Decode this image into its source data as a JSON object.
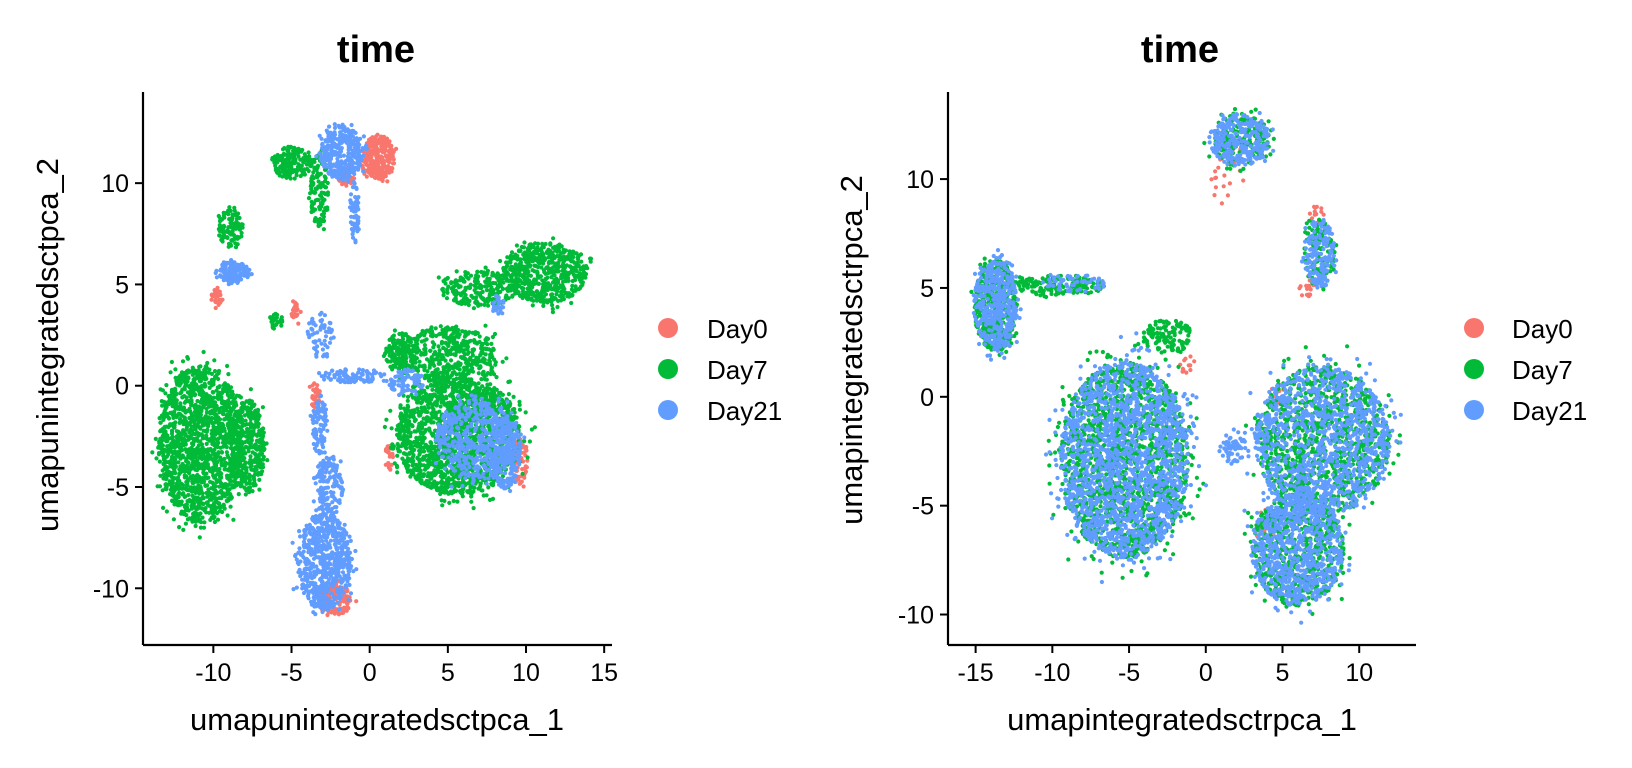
{
  "chart_data": [
    {
      "type": "scatter",
      "title": "time",
      "xlabel": "umapunintegratedsctpca_1",
      "ylabel": "umapunintegratedsctpca_2",
      "xlim": [
        -14.5,
        15.5
      ],
      "ylim": [
        -12.8,
        14.5
      ],
      "xticks": [
        -10,
        -5,
        0,
        5,
        10,
        15
      ],
      "yticks": [
        -10,
        -5,
        0,
        5,
        10
      ],
      "tick_labels_x": [
        "-10",
        "-5",
        "0",
        "5",
        "10",
        "15"
      ],
      "tick_labels_y": [
        "-10",
        "-5",
        "0",
        "5",
        "10"
      ],
      "legend_position": "right",
      "series": [
        {
          "name": "Day0",
          "color": "#F8766D",
          "clusters": [
            {
              "cx": 0.6,
              "cy": 11.3,
              "rx": 1.0,
              "ry": 1.1,
              "n": 260
            },
            {
              "cx": -9.8,
              "cy": 4.4,
              "rx": 0.35,
              "ry": 0.45,
              "n": 30
            },
            {
              "cx": -3.5,
              "cy": -0.6,
              "rx": 0.35,
              "ry": 0.7,
              "n": 40
            },
            {
              "cx": -4.7,
              "cy": 3.6,
              "rx": 0.3,
              "ry": 0.6,
              "n": 25
            },
            {
              "cx": -2.2,
              "cy": -10.6,
              "rx": 1.1,
              "ry": 0.7,
              "n": 140
            },
            {
              "cx": 9.6,
              "cy": -3.8,
              "rx": 0.5,
              "ry": 1.2,
              "n": 80
            },
            {
              "cx": -1.5,
              "cy": 10.5,
              "rx": 0.6,
              "ry": 0.6,
              "n": 40
            },
            {
              "cx": 1.2,
              "cy": -3.5,
              "rx": 0.3,
              "ry": 0.6,
              "n": 25
            }
          ]
        },
        {
          "name": "Day7",
          "color": "#00BA38",
          "clusters": [
            {
              "cx": -10.8,
              "cy": -2.9,
              "rx": 2.7,
              "ry": 3.9,
              "n": 1500
            },
            {
              "cx": -7.8,
              "cy": -3.0,
              "rx": 1.1,
              "ry": 2.3,
              "n": 350
            },
            {
              "cx": -5.0,
              "cy": 11.0,
              "rx": 1.3,
              "ry": 0.8,
              "n": 160
            },
            {
              "cx": -3.2,
              "cy": 9.6,
              "rx": 0.6,
              "ry": 1.8,
              "n": 120
            },
            {
              "cx": -8.9,
              "cy": 7.8,
              "rx": 0.8,
              "ry": 0.9,
              "n": 100
            },
            {
              "cx": 5.7,
              "cy": -2.5,
              "rx": 4.0,
              "ry": 2.9,
              "n": 1700
            },
            {
              "cx": 5.0,
              "cy": 1.4,
              "rx": 3.2,
              "ry": 1.5,
              "n": 500
            },
            {
              "cx": 11.2,
              "cy": 5.6,
              "rx": 2.7,
              "ry": 1.5,
              "n": 600
            },
            {
              "cx": 7.0,
              "cy": 4.8,
              "rx": 2.5,
              "ry": 0.9,
              "n": 220
            },
            {
              "cx": 2.0,
              "cy": 1.6,
              "rx": 1.0,
              "ry": 1.0,
              "n": 120
            },
            {
              "cx": -6.0,
              "cy": 3.2,
              "rx": 0.5,
              "ry": 0.4,
              "n": 30
            }
          ]
        },
        {
          "name": "Day21",
          "color": "#619CFF",
          "clusters": [
            {
              "cx": -1.8,
              "cy": 11.5,
              "rx": 1.4,
              "ry": 1.3,
              "n": 320
            },
            {
              "cx": -1.0,
              "cy": 8.6,
              "rx": 0.3,
              "ry": 1.5,
              "n": 60
            },
            {
              "cx": -8.7,
              "cy": 5.6,
              "rx": 1.0,
              "ry": 0.55,
              "n": 160
            },
            {
              "cx": -2.9,
              "cy": -8.7,
              "rx": 1.7,
              "ry": 2.4,
              "n": 620
            },
            {
              "cx": -2.6,
              "cy": -5.0,
              "rx": 0.9,
              "ry": 1.6,
              "n": 160
            },
            {
              "cx": -3.2,
              "cy": -2.0,
              "rx": 0.5,
              "ry": 1.5,
              "n": 90
            },
            {
              "cx": -1.0,
              "cy": 0.5,
              "rx": 2.0,
              "ry": 0.35,
              "n": 90
            },
            {
              "cx": -3.2,
              "cy": 2.5,
              "rx": 0.8,
              "ry": 1.2,
              "n": 60
            },
            {
              "cx": 6.8,
              "cy": -2.7,
              "rx": 2.6,
              "ry": 2.0,
              "n": 500
            },
            {
              "cx": 8.7,
              "cy": -3.4,
              "rx": 1.0,
              "ry": 1.8,
              "n": 220
            },
            {
              "cx": 8.2,
              "cy": 4.0,
              "rx": 0.4,
              "ry": 0.5,
              "n": 25
            },
            {
              "cx": 2.3,
              "cy": 0.2,
              "rx": 1.2,
              "ry": 0.6,
              "n": 80
            }
          ]
        }
      ]
    },
    {
      "type": "scatter",
      "title": "time",
      "xlabel": "umapintegratedsctrpca_1",
      "ylabel": "umapintegratedsctrpca_2",
      "xlim": [
        -16.8,
        13.7
      ],
      "ylim": [
        -11.4,
        14.0
      ],
      "xticks": [
        -15,
        -10,
        -5,
        0,
        5,
        10
      ],
      "yticks": [
        -10,
        -5,
        0,
        5,
        10
      ],
      "tick_labels_x": [
        "-15",
        "-10",
        "-5",
        "0",
        "5",
        "10"
      ],
      "tick_labels_y": [
        "-10",
        "-5",
        "0",
        "5",
        "10"
      ],
      "legend_position": "right",
      "series": [
        {
          "name": "Day0",
          "color": "#F8766D",
          "clusters": [
            {
              "cx": 1.5,
              "cy": 10.2,
              "rx": 1.2,
              "ry": 1.5,
              "n": 25
            },
            {
              "cx": 7.2,
              "cy": 8.4,
              "rx": 0.5,
              "ry": 0.4,
              "n": 12
            },
            {
              "cx": 4.8,
              "cy": 0.0,
              "rx": 0.6,
              "ry": 0.6,
              "n": 15
            },
            {
              "cx": -1.2,
              "cy": 1.5,
              "rx": 0.5,
              "ry": 0.5,
              "n": 12
            },
            {
              "cx": 6.5,
              "cy": 5.0,
              "rx": 0.4,
              "ry": 0.5,
              "n": 15
            },
            {
              "cx": 4.0,
              "cy": -6.0,
              "rx": 1.0,
              "ry": 1.0,
              "n": 12
            }
          ]
        },
        {
          "name": "Day7",
          "color": "#00BA38",
          "clusters": [
            {
              "cx": -13.7,
              "cy": 4.2,
              "rx": 1.4,
              "ry": 2.1,
              "n": 450
            },
            {
              "cx": -9.5,
              "cy": 5.1,
              "rx": 3.0,
              "ry": 0.45,
              "n": 150
            },
            {
              "cx": -5.3,
              "cy": -2.9,
              "rx": 4.2,
              "ry": 4.5,
              "n": 1600
            },
            {
              "cx": 7.6,
              "cy": -2.0,
              "rx": 4.4,
              "ry": 3.4,
              "n": 1000
            },
            {
              "cx": 6.0,
              "cy": -7.0,
              "rx": 3.0,
              "ry": 2.6,
              "n": 650
            },
            {
              "cx": 2.2,
              "cy": 11.8,
              "rx": 2.0,
              "ry": 1.2,
              "n": 200
            },
            {
              "cx": 7.4,
              "cy": 6.6,
              "rx": 1.0,
              "ry": 1.6,
              "n": 130
            },
            {
              "cx": -2.5,
              "cy": 2.8,
              "rx": 1.6,
              "ry": 0.8,
              "n": 120
            }
          ]
        },
        {
          "name": "Day21",
          "color": "#619CFF",
          "clusters": [
            {
              "cx": -13.7,
              "cy": 4.2,
              "rx": 1.4,
              "ry": 2.1,
              "n": 420
            },
            {
              "cx": -5.3,
              "cy": -2.9,
              "rx": 4.2,
              "ry": 4.5,
              "n": 1700
            },
            {
              "cx": 7.6,
              "cy": -2.0,
              "rx": 4.4,
              "ry": 3.4,
              "n": 1100
            },
            {
              "cx": 6.0,
              "cy": -7.0,
              "rx": 3.0,
              "ry": 2.6,
              "n": 750
            },
            {
              "cx": 2.2,
              "cy": 11.8,
              "rx": 2.0,
              "ry": 1.2,
              "n": 260
            },
            {
              "cx": 7.4,
              "cy": 6.6,
              "rx": 1.0,
              "ry": 1.6,
              "n": 160
            },
            {
              "cx": 1.8,
              "cy": -2.3,
              "rx": 0.8,
              "ry": 0.8,
              "n": 60
            },
            {
              "cx": -8.5,
              "cy": 5.2,
              "rx": 2.0,
              "ry": 0.4,
              "n": 60
            }
          ]
        }
      ]
    }
  ]
}
